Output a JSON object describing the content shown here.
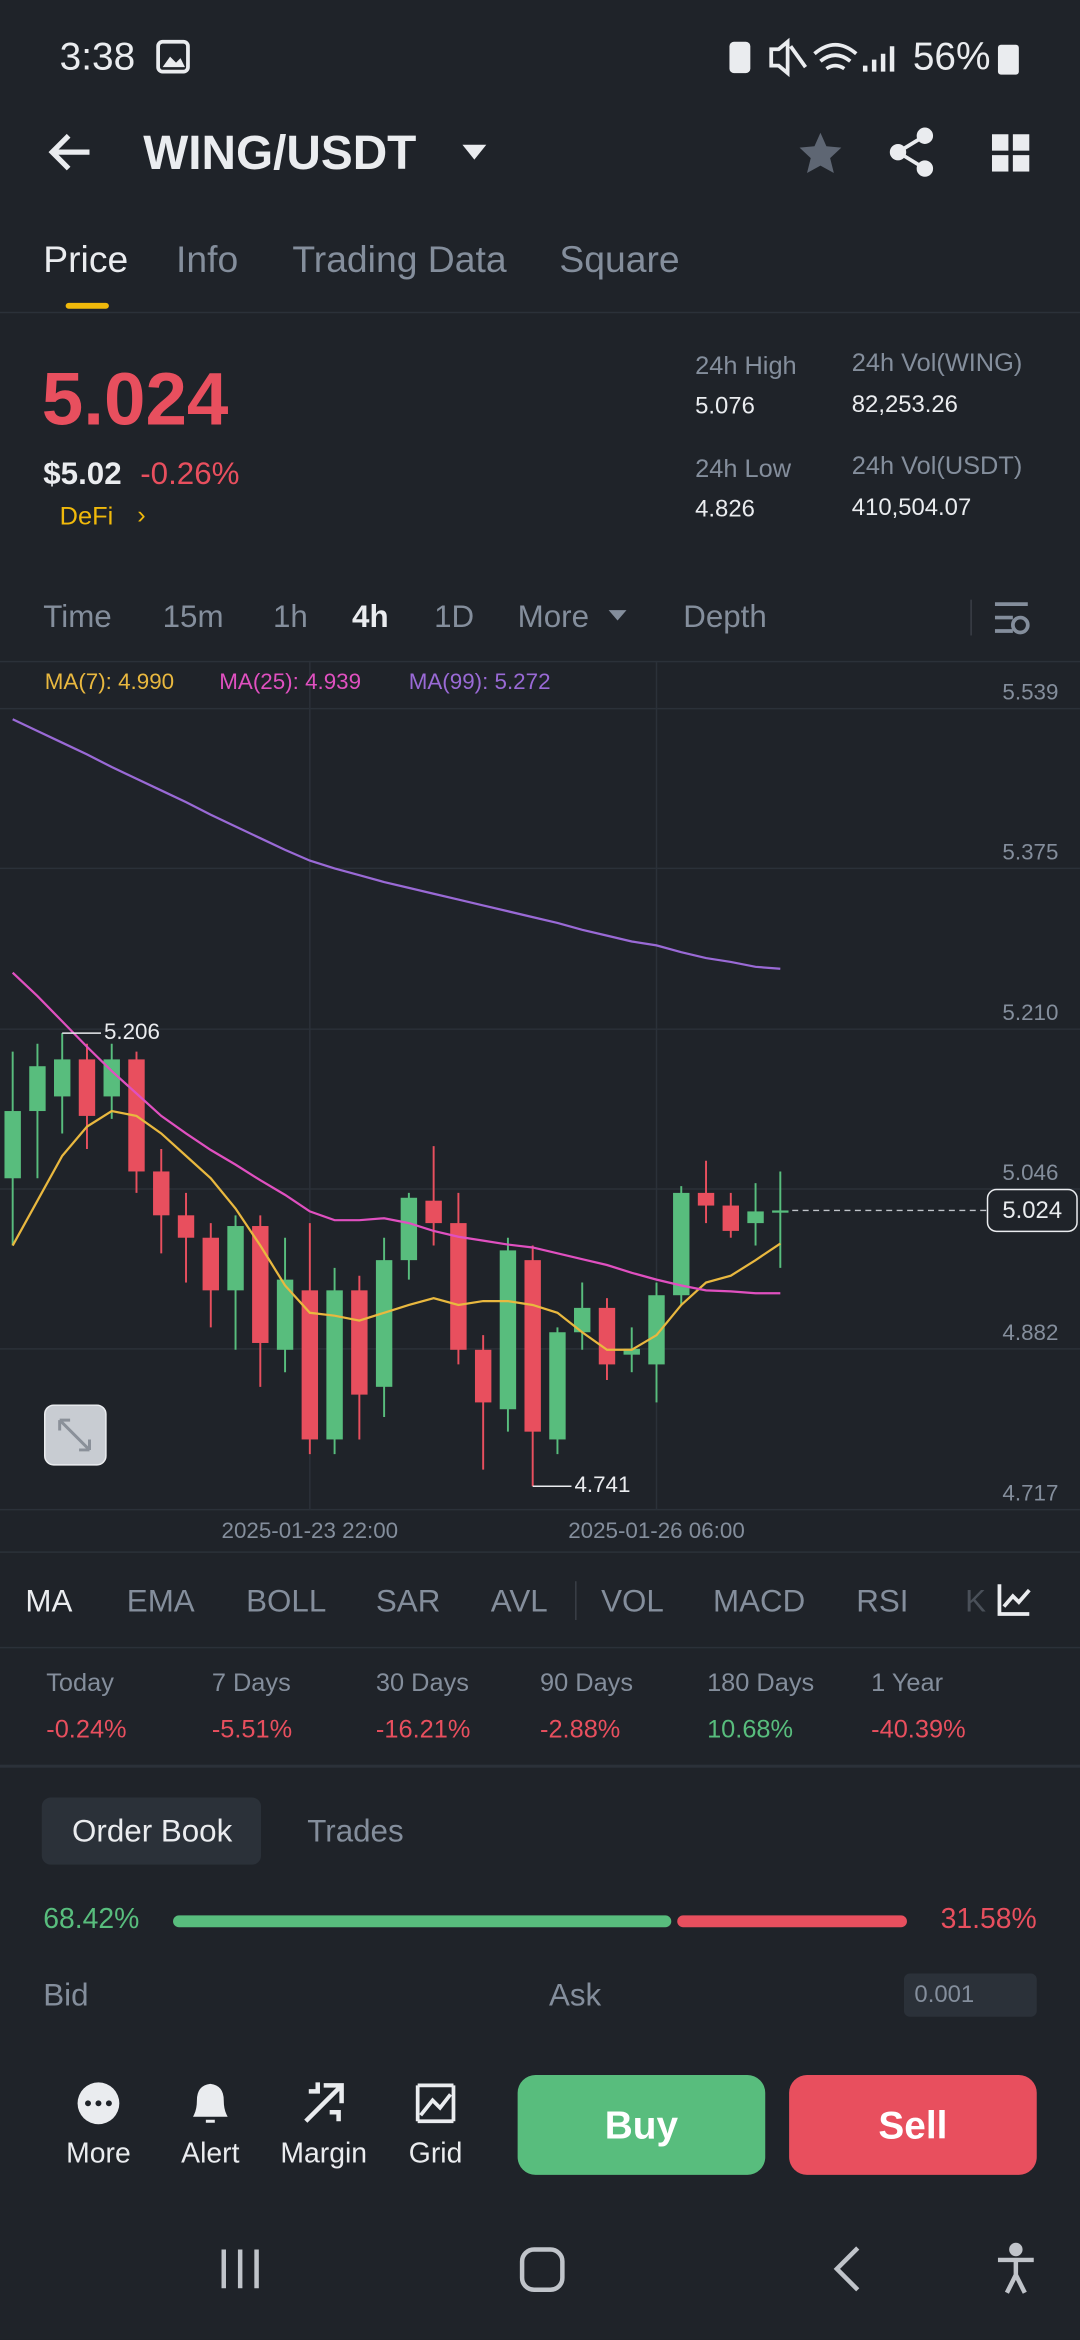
{
  "status_bar": {
    "time": "3:38",
    "battery": "56%"
  },
  "header": {
    "pair": "WING/USDT"
  },
  "tabs": [
    "Price",
    "Info",
    "Trading Data",
    "Square"
  ],
  "ticker": {
    "last": "5.024",
    "usd": "$5.02",
    "change": "-0.26%",
    "sector": "DeFi",
    "stats": [
      {
        "label": "24h High",
        "value": "5.076"
      },
      {
        "label": "24h Vol(WING)",
        "value": "82,253.26"
      },
      {
        "label": "24h Low",
        "value": "4.826"
      },
      {
        "label": "24h Vol(USDT)",
        "value": "410,504.07"
      }
    ]
  },
  "intervals": [
    "Time",
    "15m",
    "1h",
    "4h",
    "1D",
    "More",
    "Depth"
  ],
  "chart": {
    "type": "candlestick",
    "up_color": "#58bd7d",
    "down_color": "#e84f5e",
    "grid": true,
    "ylim": [
      4.717,
      5.588
    ],
    "yticks": [
      5.539,
      5.375,
      {
        "value": 5.21,
        "label": "5.210"
      },
      5.046,
      4.882,
      4.717
    ],
    "categories": [
      null,
      null,
      null,
      null,
      null,
      null,
      null,
      null,
      null,
      null,
      null,
      null,
      "2025-01-23 22:00",
      null,
      null,
      null,
      null,
      null,
      null,
      null,
      null,
      null,
      null,
      null,
      null,
      null,
      "2025-01-26 06:00",
      null,
      null,
      null,
      null,
      null
    ],
    "candles": [
      {
        "open": 5.057,
        "high": 5.187,
        "low": 4.988,
        "close": 5.126
      },
      {
        "open": 5.126,
        "high": 5.195,
        "low": 5.057,
        "close": 5.172
      },
      {
        "open": 5.141,
        "high": 5.206,
        "low": 5.103,
        "close": 5.179
      },
      {
        "open": 5.179,
        "high": 5.195,
        "low": 5.087,
        "close": 5.121
      },
      {
        "open": 5.141,
        "high": 5.195,
        "low": 5.118,
        "close": 5.179
      },
      {
        "open": 5.179,
        "high": 5.187,
        "low": 5.042,
        "close": 5.064
      },
      {
        "open": 5.064,
        "high": 5.087,
        "low": 4.98,
        "close": 5.019
      },
      {
        "open": 5.019,
        "high": 5.042,
        "low": 4.95,
        "close": 4.996
      },
      {
        "open": 4.996,
        "high": 5.011,
        "low": 4.904,
        "close": 4.942
      },
      {
        "open": 4.942,
        "high": 5.019,
        "low": 4.881,
        "close": 5.008
      },
      {
        "open": 5.008,
        "high": 5.019,
        "low": 4.843,
        "close": 4.888
      },
      {
        "open": 4.881,
        "high": 4.996,
        "low": 4.858,
        "close": 4.953
      },
      {
        "open": 4.942,
        "high": 5.011,
        "low": 4.774,
        "close": 4.789
      },
      {
        "open": 4.789,
        "high": 4.965,
        "low": 4.774,
        "close": 4.942
      },
      {
        "open": 4.942,
        "high": 4.957,
        "low": 4.789,
        "close": 4.835
      },
      {
        "open": 4.843,
        "high": 4.996,
        "low": 4.812,
        "close": 4.973
      },
      {
        "open": 4.973,
        "high": 5.042,
        "low": 4.953,
        "close": 5.037
      },
      {
        "open": 5.034,
        "high": 5.09,
        "low": 4.988,
        "close": 5.011
      },
      {
        "open": 5.011,
        "high": 5.042,
        "low": 4.866,
        "close": 4.881
      },
      {
        "open": 4.881,
        "high": 4.896,
        "low": 4.758,
        "close": 4.827
      },
      {
        "open": 4.82,
        "high": 4.996,
        "low": 4.797,
        "close": 4.983
      },
      {
        "open": 4.973,
        "high": 4.988,
        "low": 4.741,
        "close": 4.797
      },
      {
        "open": 4.789,
        "high": 4.904,
        "low": 4.774,
        "close": 4.899
      },
      {
        "open": 4.899,
        "high": 4.95,
        "low": 4.881,
        "close": 4.924
      },
      {
        "open": 4.924,
        "high": 4.934,
        "low": 4.85,
        "close": 4.866
      },
      {
        "open": 4.876,
        "high": 4.904,
        "low": 4.858,
        "close": 4.882
      },
      {
        "open": 4.866,
        "high": 4.95,
        "low": 4.827,
        "close": 4.937
      },
      {
        "open": 4.937,
        "high": 5.049,
        "low": 4.927,
        "close": 5.042
      },
      {
        "open": 5.042,
        "high": 5.075,
        "low": 5.011,
        "close": 5.029
      },
      {
        "open": 5.029,
        "high": 5.042,
        "low": 4.996,
        "close": 5.003
      },
      {
        "open": 5.011,
        "high": 5.052,
        "low": 4.988,
        "close": 5.023
      },
      {
        "open": 5.022,
        "high": 5.064,
        "low": 4.965,
        "close": 5.024
      }
    ],
    "ma": [
      {
        "label": "MA(7): 4.990",
        "color": "#e9b83f",
        "values": [
          4.988,
          5.034,
          5.08,
          5.11,
          5.126,
          5.121,
          5.103,
          5.08,
          5.057,
          5.026,
          4.988,
          4.947,
          4.919,
          4.916,
          4.911,
          4.919,
          4.927,
          4.934,
          4.927,
          4.931,
          4.931,
          4.927,
          4.919,
          4.899,
          4.881,
          4.881,
          4.896,
          4.927,
          4.95,
          4.957,
          4.973,
          4.99
        ]
      },
      {
        "label": "MA(25): 4.939",
        "color": "#e050c0",
        "values": [
          5.268,
          5.244,
          5.218,
          5.192,
          5.167,
          5.144,
          5.121,
          5.103,
          5.086,
          5.071,
          5.055,
          5.04,
          5.023,
          5.014,
          5.014,
          5.016,
          5.011,
          5.003,
          4.997,
          4.993,
          4.989,
          4.986,
          4.98,
          4.974,
          4.968,
          4.96,
          4.953,
          4.947,
          4.942,
          4.941,
          4.939,
          4.939
        ]
      },
      {
        "label": "MA(99): 5.272",
        "color": "#9a6ad6",
        "values": [
          5.528,
          5.516,
          5.504,
          5.492,
          5.479,
          5.467,
          5.455,
          5.443,
          5.43,
          5.418,
          5.406,
          5.394,
          5.383,
          5.375,
          5.368,
          5.361,
          5.355,
          5.349,
          5.343,
          5.337,
          5.331,
          5.325,
          5.319,
          5.312,
          5.306,
          5.3,
          5.296,
          5.289,
          5.283,
          5.279,
          5.274,
          5.272
        ]
      }
    ],
    "high_label": "5.206",
    "low_label": "4.741",
    "last_label": "5.024"
  },
  "indicators": [
    "MA",
    "EMA",
    "BOLL",
    "SAR",
    "AVL",
    "VOL",
    "MACD",
    "RSI",
    "K"
  ],
  "performance": [
    {
      "label": "Today",
      "value": "-0.24%"
    },
    {
      "label": "7 Days",
      "value": "-5.51%"
    },
    {
      "label": "30 Days",
      "value": "-16.21%"
    },
    {
      "label": "90 Days",
      "value": "-2.88%"
    },
    {
      "label": "180 Days",
      "value": "10.68%"
    },
    {
      "label": "1 Year",
      "value": "-40.39%"
    }
  ],
  "order_book": {
    "tabs": [
      "Order Book",
      "Trades"
    ],
    "depth": {
      "values": [
        68.42,
        31.58
      ],
      "value_labels": [
        "68.42%",
        "31.58%"
      ],
      "colors": [
        "#58bd7d",
        "#e84f5e"
      ]
    },
    "bid": "Bid",
    "ask": "Ask",
    "step": "0.001"
  },
  "toolbar": [
    "More",
    "Alert",
    "Margin",
    "Grid"
  ],
  "actions": [
    "Buy",
    "Sell"
  ]
}
